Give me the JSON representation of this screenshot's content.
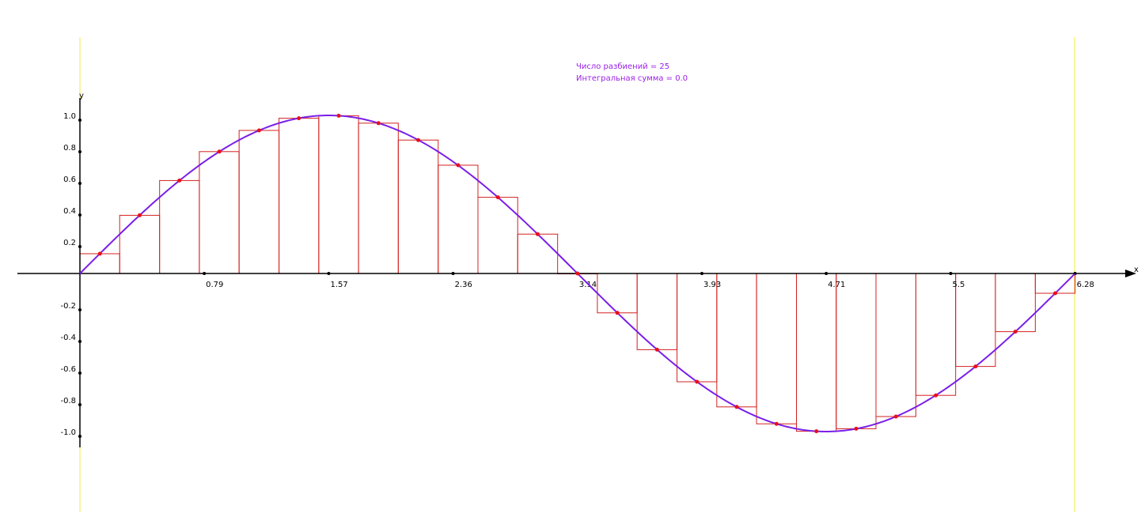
{
  "info": {
    "partitions_text": "Число разбиений = 25",
    "integral_sum_text": "Интегральная сумма = 0.0"
  },
  "colors": {
    "curve": "#7a1fe8",
    "rectangles": "#d42020",
    "sample_points": "#e8101a",
    "bounds": "#f5ee3a",
    "axes": "#000000",
    "info_text": "#9b1fe8"
  },
  "chart_data": {
    "type": "line",
    "function": "sin(x)",
    "title": "",
    "xlabel": "x",
    "ylabel": "y",
    "xlim": [
      0,
      6.28
    ],
    "ylim": [
      -1.0,
      1.0
    ],
    "interval": [
      0,
      6.28
    ],
    "partitions": 25,
    "integral_sum": 0.0,
    "x_ticks": [
      {
        "value": 0.785,
        "label": "0.79"
      },
      {
        "value": 1.571,
        "label": "1.57"
      },
      {
        "value": 2.356,
        "label": "2.36"
      },
      {
        "value": 3.142,
        "label": "3.14"
      },
      {
        "value": 3.927,
        "label": "3.93"
      },
      {
        "value": 4.712,
        "label": "4.71"
      },
      {
        "value": 5.498,
        "label": "5.5"
      },
      {
        "value": 6.283,
        "label": "6.28"
      }
    ],
    "y_ticks": [
      {
        "value": 1.0,
        "label": "1.0"
      },
      {
        "value": 0.8,
        "label": "0.8"
      },
      {
        "value": 0.6,
        "label": "0.6"
      },
      {
        "value": 0.4,
        "label": "0.4"
      },
      {
        "value": 0.2,
        "label": "0.2"
      },
      {
        "value": -0.2,
        "label": "-0.2"
      },
      {
        "value": -0.4,
        "label": "-0.4"
      },
      {
        "value": -0.6,
        "label": "-0.6"
      },
      {
        "value": -0.8,
        "label": "-0.8"
      },
      {
        "value": -1.0,
        "label": "-1.0"
      }
    ],
    "rectangles": [
      {
        "x0": 0.0,
        "x1": 0.251,
        "height": 0.125
      },
      {
        "x0": 0.251,
        "x1": 0.503,
        "height": 0.368
      },
      {
        "x0": 0.503,
        "x1": 0.754,
        "height": 0.588
      },
      {
        "x0": 0.754,
        "x1": 1.005,
        "height": 0.771
      },
      {
        "x0": 1.005,
        "x1": 1.257,
        "height": 0.905
      },
      {
        "x0": 1.257,
        "x1": 1.508,
        "height": 0.982
      },
      {
        "x0": 1.508,
        "x1": 1.759,
        "height": 0.998
      },
      {
        "x0": 1.759,
        "x1": 2.01,
        "height": 0.951
      },
      {
        "x0": 2.01,
        "x1": 2.262,
        "height": 0.844
      },
      {
        "x0": 2.262,
        "x1": 2.513,
        "height": 0.685
      },
      {
        "x0": 2.513,
        "x1": 2.764,
        "height": 0.482
      },
      {
        "x0": 2.764,
        "x1": 3.016,
        "height": 0.249
      },
      {
        "x0": 3.016,
        "x1": 3.267,
        "height": 0.0
      },
      {
        "x0": 3.267,
        "x1": 3.518,
        "height": -0.249
      },
      {
        "x0": 3.518,
        "x1": 3.77,
        "height": -0.482
      },
      {
        "x0": 3.77,
        "x1": 4.021,
        "height": -0.685
      },
      {
        "x0": 4.021,
        "x1": 4.272,
        "height": -0.844
      },
      {
        "x0": 4.272,
        "x1": 4.524,
        "height": -0.951
      },
      {
        "x0": 4.524,
        "x1": 4.775,
        "height": -0.998
      },
      {
        "x0": 4.775,
        "x1": 5.026,
        "height": -0.982
      },
      {
        "x0": 5.026,
        "x1": 5.278,
        "height": -0.905
      },
      {
        "x0": 5.278,
        "x1": 5.529,
        "height": -0.771
      },
      {
        "x0": 5.529,
        "x1": 5.78,
        "height": -0.588
      },
      {
        "x0": 5.78,
        "x1": 6.032,
        "height": -0.368
      },
      {
        "x0": 6.032,
        "x1": 6.283,
        "height": -0.125
      }
    ],
    "sample_points": [
      {
        "x": 0.126,
        "y": 0.125
      },
      {
        "x": 0.377,
        "y": 0.368
      },
      {
        "x": 0.628,
        "y": 0.588
      },
      {
        "x": 0.88,
        "y": 0.771
      },
      {
        "x": 1.131,
        "y": 0.905
      },
      {
        "x": 1.382,
        "y": 0.982
      },
      {
        "x": 1.634,
        "y": 0.998
      },
      {
        "x": 1.885,
        "y": 0.951
      },
      {
        "x": 2.136,
        "y": 0.844
      },
      {
        "x": 2.388,
        "y": 0.685
      },
      {
        "x": 2.639,
        "y": 0.482
      },
      {
        "x": 2.89,
        "y": 0.249
      },
      {
        "x": 3.142,
        "y": 0.0
      },
      {
        "x": 3.393,
        "y": -0.249
      },
      {
        "x": 3.644,
        "y": -0.482
      },
      {
        "x": 3.896,
        "y": -0.685
      },
      {
        "x": 4.147,
        "y": -0.844
      },
      {
        "x": 4.398,
        "y": -0.951
      },
      {
        "x": 4.65,
        "y": -0.998
      },
      {
        "x": 4.901,
        "y": -0.982
      },
      {
        "x": 5.152,
        "y": -0.905
      },
      {
        "x": 5.404,
        "y": -0.771
      },
      {
        "x": 5.655,
        "y": -0.588
      },
      {
        "x": 5.906,
        "y": -0.368
      },
      {
        "x": 6.158,
        "y": -0.125
      }
    ]
  }
}
